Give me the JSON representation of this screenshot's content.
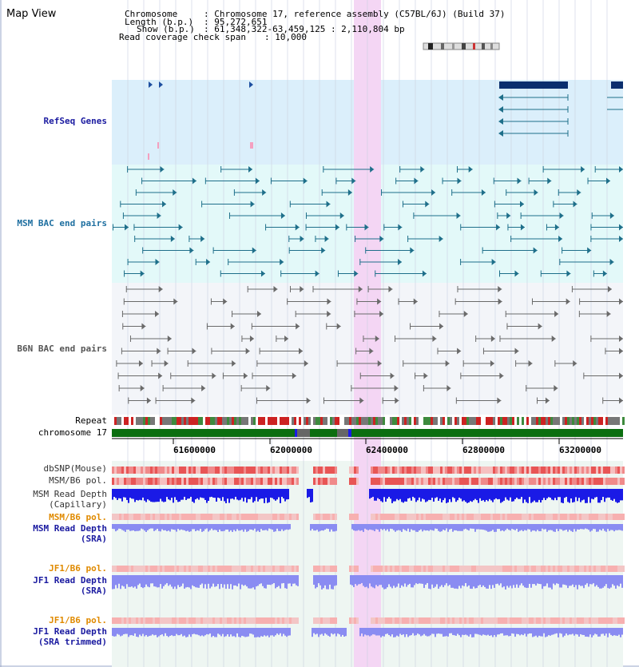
{
  "map_title": "Map View",
  "info": {
    "chromosome_label": "Chromosome",
    "chromosome_value": ": Chromosome 17, reference assembly (C57BL/6J) (Build 37)",
    "length_label": "Length (b.p.)",
    "length_value": ": 95,272,651",
    "show_label": "Show (b.p.)",
    "show_value": ": 61,348,322-63,459,125 : 2,110,804 bp",
    "coverage_label": "Read coverage check span",
    "coverage_value": ": 10,000"
  },
  "tracks": {
    "refseq": "RefSeq Genes",
    "msm_bac": "MSM BAC end pairs",
    "b6n_bac": "B6N BAC end pairs",
    "repeat": "Repeat",
    "chromosome": "chromosome 17",
    "dbsnp": "dbSNP(Mouse)",
    "msm_b6_pol": "MSM/B6 pol.",
    "msm_read_depth_cap_1": "MSM Read Depth",
    "msm_read_depth_cap_2": "(Capillary)",
    "msm_b6_pol_sra": "MSM/B6 pol.",
    "msm_read_depth_sra_1": "MSM Read Depth",
    "msm_read_depth_sra_2": "(SRA)",
    "jf1_b6_pol": "JF1/B6 pol.",
    "jf1_read_depth_sra_1": "JF1 Read Depth",
    "jf1_read_depth_sra_2": "(SRA)",
    "jf1_b6_pol_trim": "JF1/B6 pol.",
    "jf1_read_depth_trim_1": "JF1 Read Depth",
    "jf1_read_depth_trim_2": "(SRA trimmed)"
  },
  "axis": {
    "ticks": [
      "61600000",
      "62000000",
      "62400000",
      "62800000",
      "63200000"
    ]
  },
  "colors": {
    "highlight": "#f4d6f4",
    "refseq_bg": "#dbeffb",
    "msm_bg": "#e3f9f9",
    "b6n_bg": "#f3f5f9",
    "chrom_green": "#0b6e10",
    "depth_blue": "#1a1ae6",
    "depth_light": "#8a8cf2",
    "snp_red": "#e84040"
  }
}
